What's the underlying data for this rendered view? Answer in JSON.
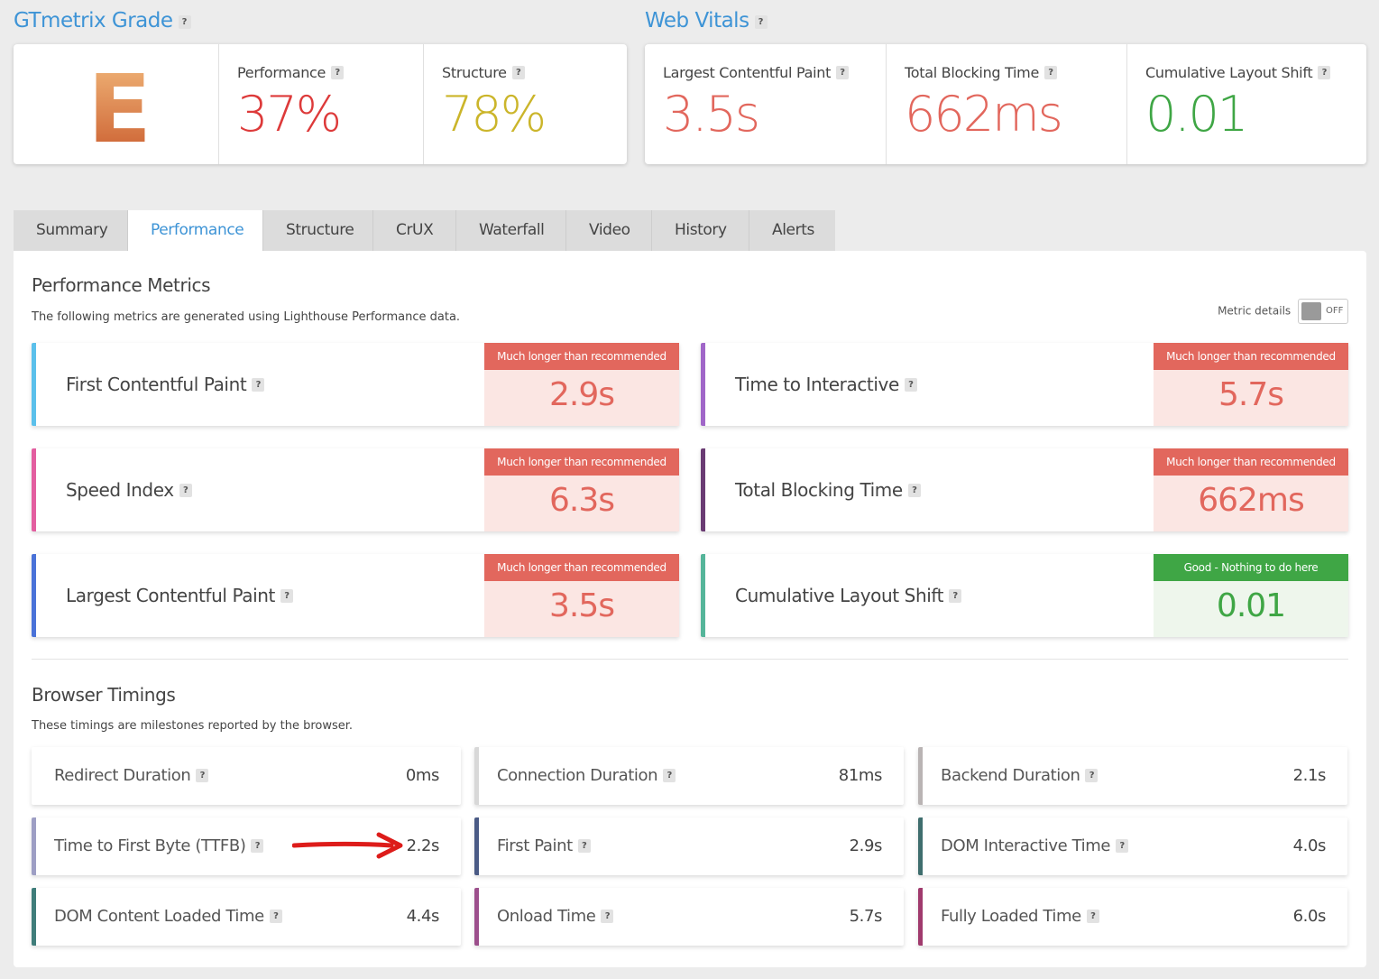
{
  "colors": {
    "accent": "#3e94d6",
    "bad": "#e2675d",
    "bad_bg": "#fbe6e3",
    "good": "#3fa645",
    "good_bg": "#eef6ec",
    "performance": "#dd3a3a",
    "structure": "#cbb52a",
    "grade": "#d8733a"
  },
  "grade": {
    "title": "GTmetrix Grade",
    "letter": "E",
    "performance_label": "Performance",
    "performance_value": "37%",
    "structure_label": "Structure",
    "structure_value": "78%"
  },
  "web_vitals": {
    "title": "Web Vitals",
    "items": [
      {
        "label": "Largest Contentful Paint",
        "value": "3.5s"
      },
      {
        "label": "Total Blocking Time",
        "value": "662ms"
      },
      {
        "label": "Cumulative Layout Shift",
        "value": "0.01"
      }
    ]
  },
  "tabs": [
    "Summary",
    "Performance",
    "Structure",
    "CrUX",
    "Waterfall",
    "Video",
    "History",
    "Alerts"
  ],
  "active_tab": "Performance",
  "performance_metrics": {
    "title": "Performance Metrics",
    "subtitle": "The following metrics are generated using Lighthouse Performance data.",
    "toggle_label": "Metric details",
    "toggle_state": "OFF",
    "items": [
      {
        "label": "First Contentful Paint",
        "badge": "Much longer than recommended",
        "value": "2.9s",
        "status": "bad",
        "color": "#5bc0eb"
      },
      {
        "label": "Time to Interactive",
        "badge": "Much longer than recommended",
        "value": "5.7s",
        "status": "bad",
        "color": "#a066c8"
      },
      {
        "label": "Speed Index",
        "badge": "Much longer than recommended",
        "value": "6.3s",
        "status": "bad",
        "color": "#e35ea0"
      },
      {
        "label": "Total Blocking Time",
        "badge": "Much longer than recommended",
        "value": "662ms",
        "status": "bad",
        "color": "#6a3b73"
      },
      {
        "label": "Largest Contentful Paint",
        "badge": "Much longer than recommended",
        "value": "3.5s",
        "status": "bad",
        "color": "#4a72d8"
      },
      {
        "label": "Cumulative Layout Shift",
        "badge": "Good - Nothing to do here",
        "value": "0.01",
        "status": "good",
        "color": "#55b59a"
      }
    ]
  },
  "browser_timings": {
    "title": "Browser Timings",
    "subtitle": "These timings are milestones reported by the browser.",
    "items": [
      {
        "label": "Redirect Duration",
        "value": "0ms",
        "color": "#ffffff"
      },
      {
        "label": "Connection Duration",
        "value": "81ms",
        "color": "#d8d8d8"
      },
      {
        "label": "Backend Duration",
        "value": "2.1s",
        "color": "#b9b4b4"
      },
      {
        "label": "Time to First Byte (TTFB)",
        "value": "2.2s",
        "color": "#9d9ec4"
      },
      {
        "label": "First Paint",
        "value": "2.9s",
        "color": "#4a5a85"
      },
      {
        "label": "DOM Interactive Time",
        "value": "4.0s",
        "color": "#3f6e6e"
      },
      {
        "label": "DOM Content Loaded Time",
        "value": "4.4s",
        "color": "#3f7d7a"
      },
      {
        "label": "Onload Time",
        "value": "5.7s",
        "color": "#9c4f8c"
      },
      {
        "label": "Fully Loaded Time",
        "value": "6.0s",
        "color": "#a03a6d"
      }
    ]
  }
}
